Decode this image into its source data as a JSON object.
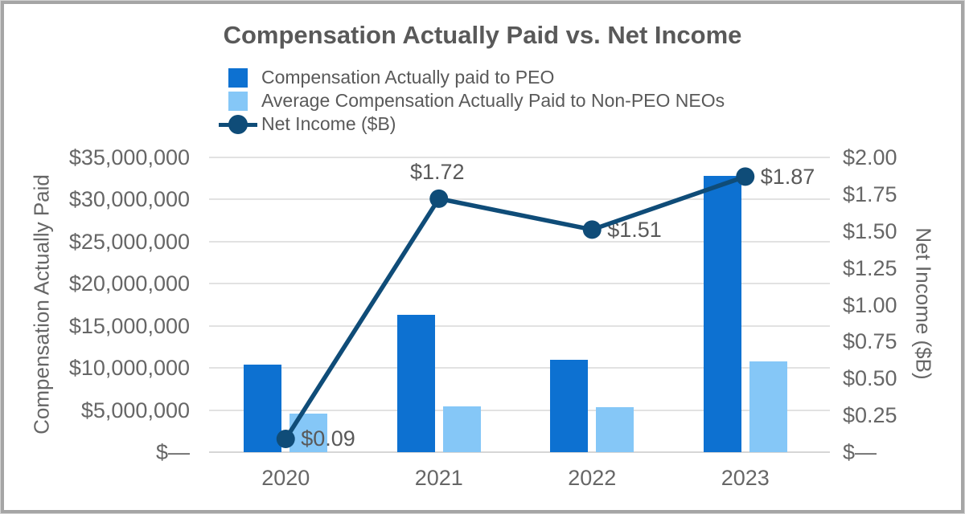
{
  "chart_data": {
    "type": "bar",
    "combo": "grouped bars on left axis + line with markers on right axis",
    "title": "Compensation Actually Paid vs. Net Income",
    "categories": [
      "2020",
      "2021",
      "2022",
      "2023"
    ],
    "series": [
      {
        "name": "Compensation Actually paid to PEO",
        "type": "bar",
        "axis": "left",
        "color": "#0d71d1",
        "values": [
          10400000,
          16300000,
          11000000,
          32800000
        ]
      },
      {
        "name": "Average Compensation Actually Paid to Non-PEO NEOs",
        "type": "bar",
        "axis": "left",
        "color": "#85c7f7",
        "values": [
          4600000,
          5400000,
          5300000,
          10800000
        ]
      },
      {
        "name": "Net Income ($B)",
        "type": "line",
        "axis": "right",
        "color": "#0f4c78",
        "values": [
          0.09,
          1.72,
          1.51,
          1.87
        ],
        "data_labels": [
          "$0.09",
          "$1.72",
          "$1.51",
          "$1.87"
        ],
        "label_anchors": [
          "right",
          "top",
          "right",
          "right"
        ]
      }
    ],
    "left_axis": {
      "title": "Compensation Actually Paid",
      "min": 0,
      "max": 35000000,
      "tick_labels": [
        "$35,000,000",
        "$30,000,000",
        "$25,000,000",
        "$20,000,000",
        "$15,000,000",
        "$10,000,000",
        "$5,000,000",
        "$—"
      ]
    },
    "right_axis": {
      "title": "Net Income ($B)",
      "min": 0,
      "max": 2.0,
      "tick_labels": [
        "$2.00",
        "$1.75",
        "$1.50",
        "$1.25",
        "$1.00",
        "$0.75",
        "$0.50",
        "$0.25",
        "$—"
      ]
    },
    "x_axis": {
      "labels": [
        "2020",
        "2021",
        "2022",
        "2023"
      ]
    },
    "grid": true,
    "legend_position": "top-left"
  },
  "legend": {
    "items": [
      {
        "label": "Compensation Actually paid to PEO",
        "swatch": "square",
        "color": "#0d71d1"
      },
      {
        "label": "Average Compensation Actually Paid to Non-PEO NEOs",
        "swatch": "square",
        "color": "#85c7f7"
      },
      {
        "label": "Net Income ($B)",
        "swatch": "line-marker",
        "color": "#0f4c78"
      }
    ]
  },
  "colors": {
    "peo_bar": "#0d71d1",
    "non_peo_bar": "#85c7f7",
    "net_income_line": "#0f4c78",
    "title_text": "#595959",
    "axis_text": "#666666",
    "gridline": "#e2e2e2",
    "frame_border": "#a5a5a5"
  }
}
